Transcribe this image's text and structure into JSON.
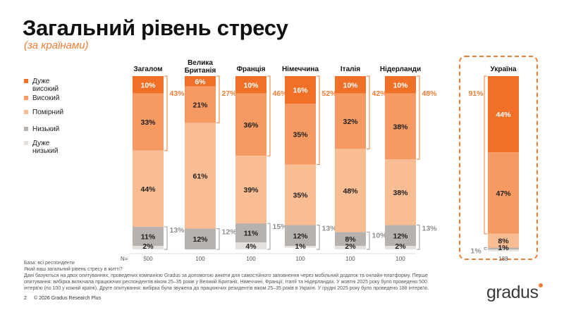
{
  "page": {
    "title": "Загальний рівень стресу",
    "subtitle": "(за країнами)",
    "n_label": "N="
  },
  "colors": {
    "very_high": "#f07028",
    "high": "#f59a63",
    "moderate": "#f9bd94",
    "low": "#b7b2ad",
    "very_low": "#e3e0dd",
    "accent": "#f07e36",
    "bracket_gray": "#999999"
  },
  "legend": [
    {
      "key": "very_high",
      "label": "Дуже\nвисокий"
    },
    {
      "key": "high",
      "label": "Високий"
    },
    {
      "key": "moderate",
      "label": "Помірний"
    },
    {
      "key": "low",
      "label": "Низький"
    },
    {
      "key": "very_low",
      "label": "Дуже\nнизький"
    }
  ],
  "chart_data": {
    "type": "bar",
    "stacked": true,
    "orientation": "vertical",
    "unit": "%",
    "categories": [
      "Загалом",
      "Велика\nБританія",
      "Франція",
      "Німеччина",
      "Італія",
      "Нідерланди",
      "Україна"
    ],
    "series": [
      {
        "name": "Дуже високий",
        "key": "very_high",
        "values": [
          10,
          6,
          10,
          16,
          10,
          10,
          44
        ]
      },
      {
        "name": "Високий",
        "key": "high",
        "values": [
          33,
          21,
          36,
          35,
          32,
          38,
          47
        ]
      },
      {
        "name": "Помірний",
        "key": "moderate",
        "values": [
          44,
          61,
          39,
          35,
          48,
          38,
          8
        ]
      },
      {
        "name": "Низький",
        "key": "low",
        "values": [
          11,
          12,
          11,
          12,
          8,
          12,
          1
        ]
      },
      {
        "name": "Дуже низький",
        "key": "very_low",
        "values": [
          2,
          0,
          4,
          1,
          2,
          2,
          1
        ]
      }
    ],
    "segment_labels": [
      [
        "10%",
        "33%",
        "44%",
        "11%",
        "2%"
      ],
      [
        "6%",
        "21%",
        "61%",
        "12%",
        ""
      ],
      [
        "10%",
        "36%",
        "39%",
        "11%",
        "4%"
      ],
      [
        "16%",
        "35%",
        "35%",
        "12%",
        "1%"
      ],
      [
        "10%",
        "32%",
        "48%",
        "8%",
        "2%"
      ],
      [
        "10%",
        "38%",
        "38%",
        "12%",
        "2%"
      ],
      [
        "44%",
        "47%",
        "8%",
        "1%",
        "1%"
      ]
    ],
    "top_totals": [
      "43%",
      "27%",
      "46%",
      "52%",
      "42%",
      "48%",
      "91%"
    ],
    "bottom_totals": [
      "13%",
      "12%",
      "15%",
      "13%",
      "10%",
      "13%",
      "1%"
    ],
    "n": [
      "500",
      "100",
      "100",
      "100",
      "100",
      "100",
      "188"
    ],
    "highlighted_category": "Україна",
    "ylim": [
      0,
      100
    ]
  },
  "footnotes": [
    "База: всі респонденти",
    "Який ваш загальний рівень стресу в житті?",
    "Дані базуються на двох опитуваннях, проведених компанією Gradus за допомогою анкети для самостійного заповнення через мобільний додаток та онлайн-платформу. Перше",
    "опитування: вибірка включала працюючих респондентів віком 25–35 років у Великій Британії, Німеччині, Франції, Італії та Нідерландах. У жовтні 2025 року було проведено 500",
    "інтерв'ю (по 100 у кожній країні). Друге опитування: вибірка була звужена до працюючих резидентів віком 25–35 років в Україні. У грудні 2025 року було проведено 188 інтерв'ю."
  ],
  "footer": {
    "page_number": "2",
    "copyright": "© 2026 Gradus Research Plus",
    "logo_text": "gradus"
  }
}
